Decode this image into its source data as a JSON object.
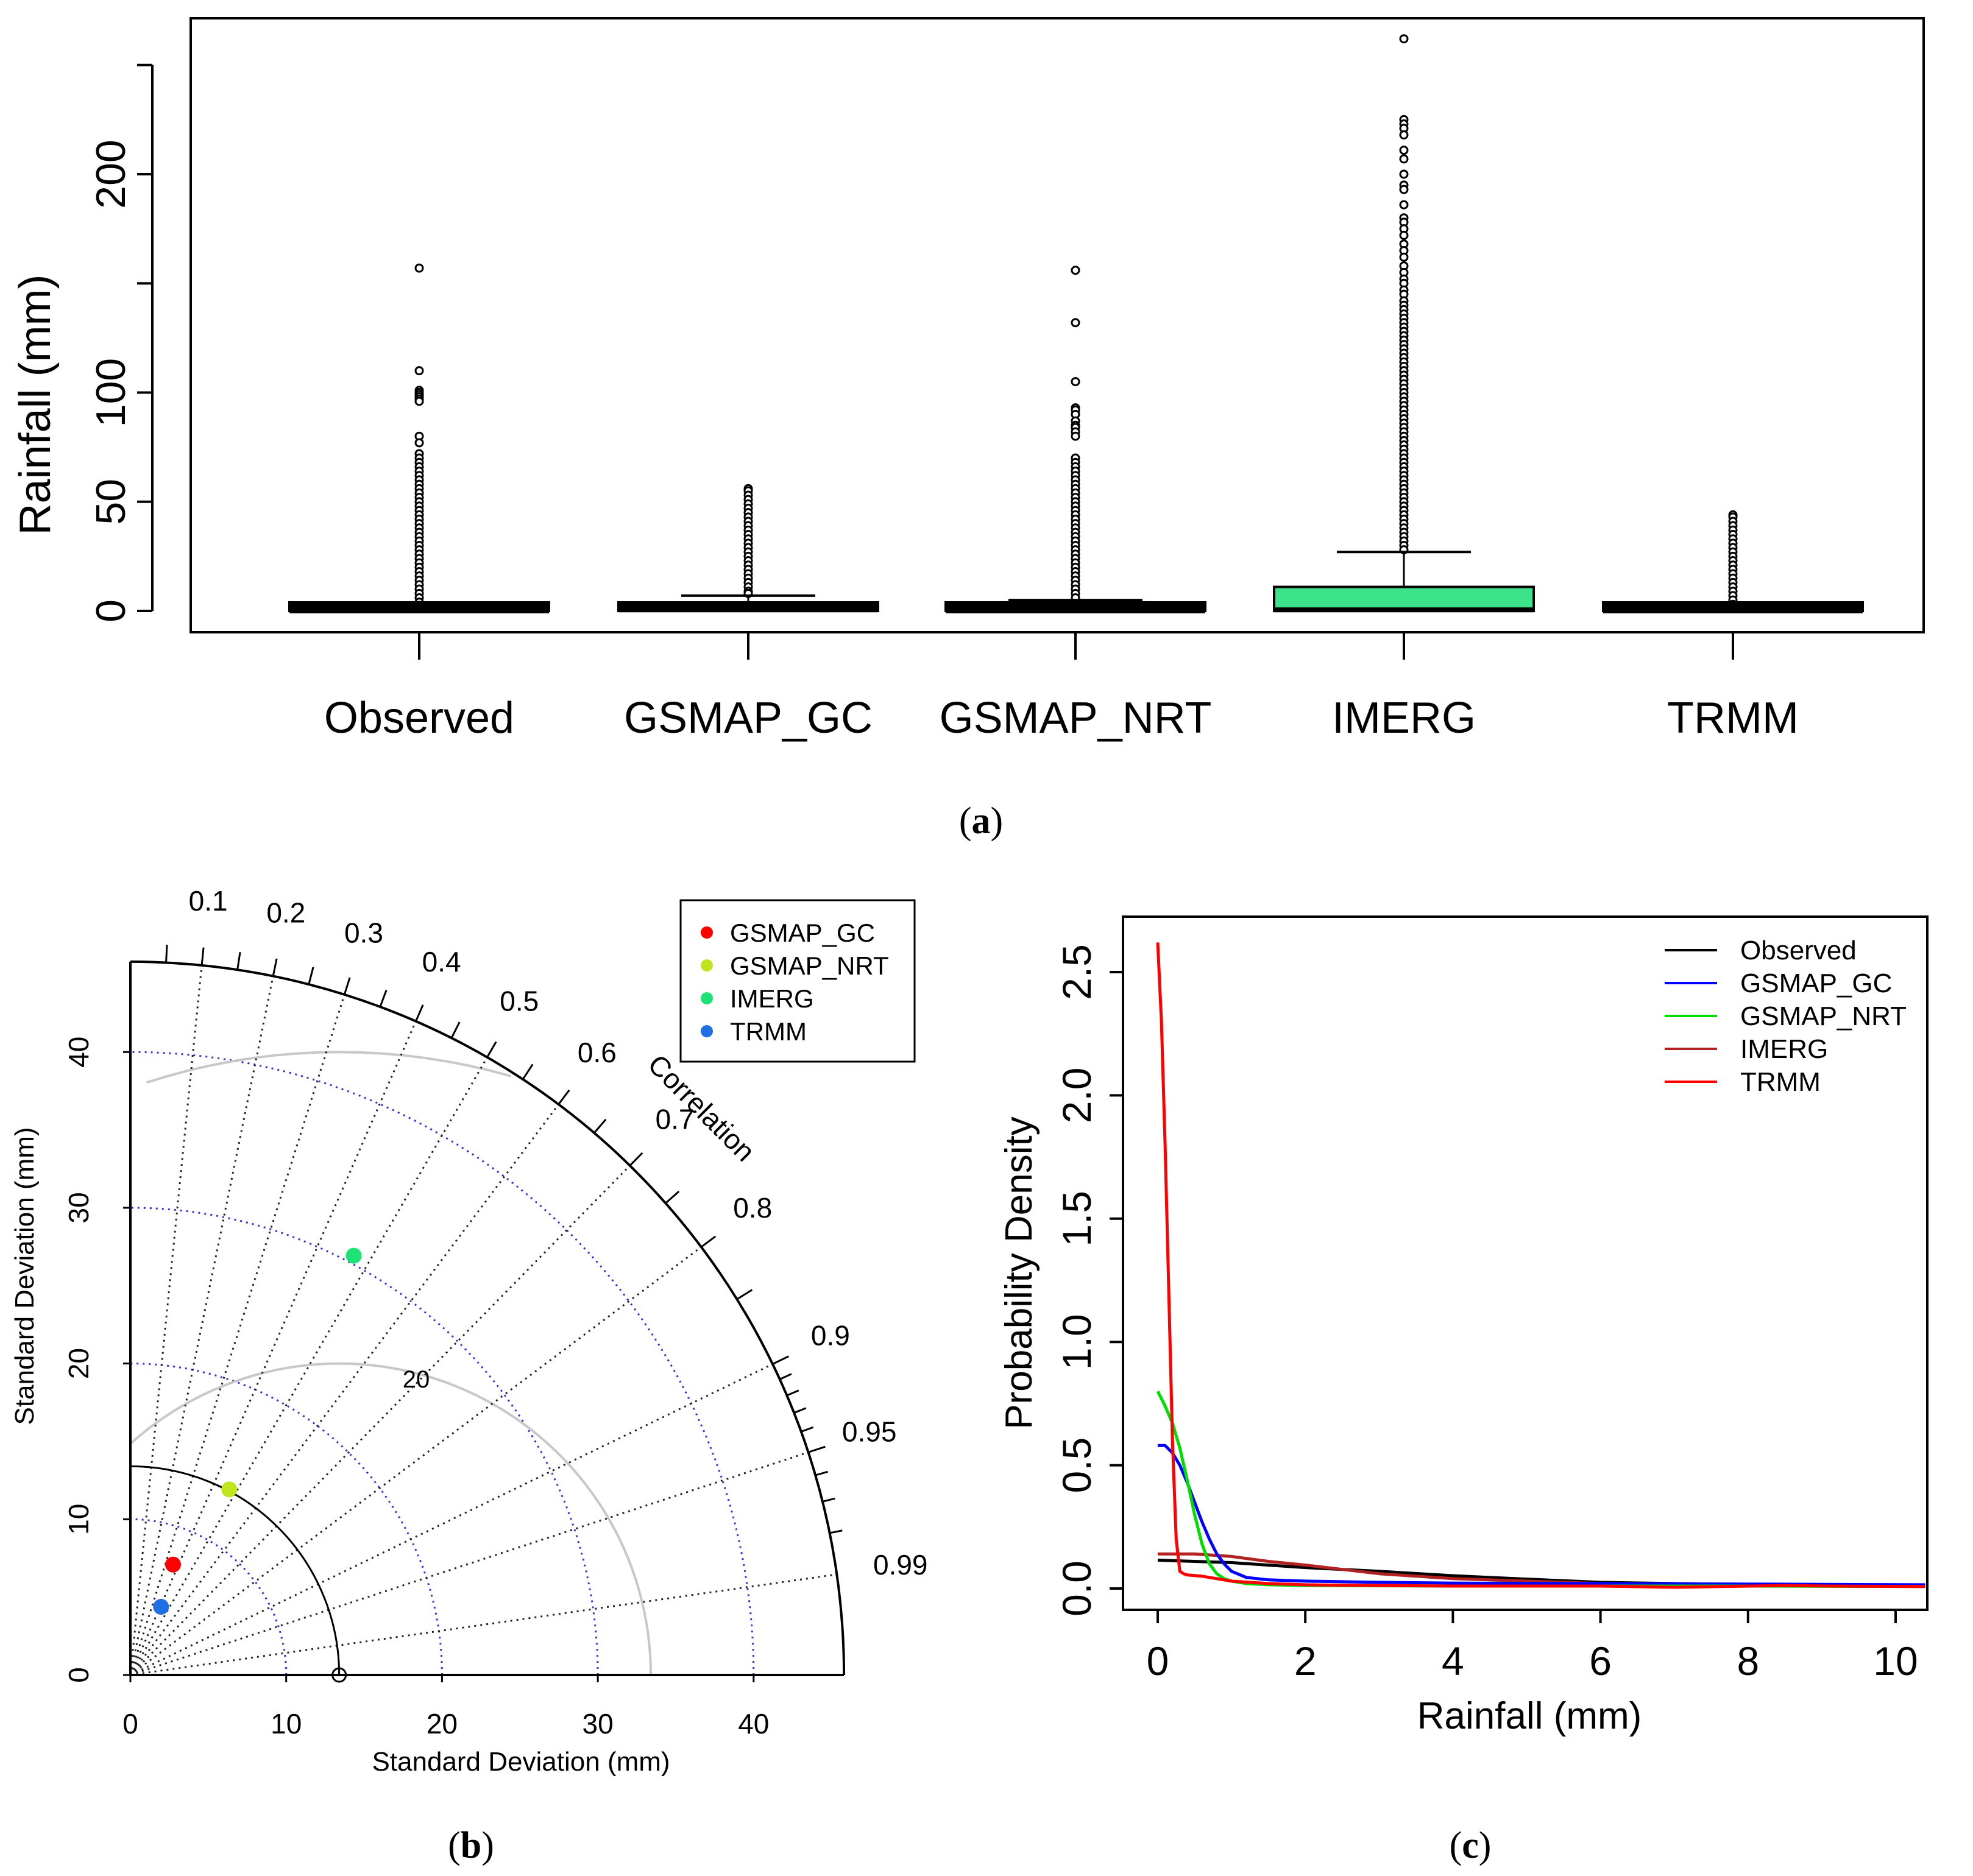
{
  "chart_data": [
    {
      "id": "a",
      "type": "box",
      "panel_label": "a",
      "ylabel": "Rainfall (mm)",
      "yticks": [
        0,
        50,
        100,
        200
      ],
      "ylim": [
        -5,
        272
      ],
      "categories": [
        "Observed",
        "GSMAP_GC",
        "GSMAP_NRT",
        "IMERG",
        "TRMM"
      ],
      "boxes": [
        {
          "name": "Observed",
          "q1": 0,
          "median": 0,
          "q3": 1,
          "whisker_low": 0,
          "whisker_high": 1,
          "fill": "#000000",
          "outliers": [
            157,
            110,
            101,
            100,
            99,
            98,
            97,
            96,
            80,
            77,
            72,
            70,
            68,
            66,
            64,
            62,
            60,
            58,
            56,
            54,
            52,
            50,
            48,
            46,
            44,
            42,
            40,
            38,
            36,
            34,
            32,
            30,
            28,
            26,
            24,
            22,
            20,
            18,
            16,
            14,
            12,
            10,
            8,
            6,
            4,
            2.5
          ]
        },
        {
          "name": "GSMAP_GC",
          "q1": 0,
          "median": 0.5,
          "q3": 2.5,
          "whisker_low": 0,
          "whisker_high": 7,
          "fill": "#000000",
          "outliers": [
            56,
            55,
            53,
            51,
            49,
            47,
            45,
            43,
            41,
            39,
            37,
            35,
            33,
            31,
            29,
            27,
            25,
            23,
            21,
            19,
            17,
            15,
            13,
            11,
            9,
            8
          ]
        },
        {
          "name": "GSMAP_NRT",
          "q1": 0,
          "median": 0,
          "q3": 1,
          "whisker_low": 0,
          "whisker_high": 5,
          "fill": "#000000",
          "outliers": [
            156,
            132,
            105,
            93,
            92,
            90,
            87,
            85,
            84,
            82,
            80,
            70,
            68,
            66,
            64,
            62,
            60,
            58,
            56,
            54,
            52,
            50,
            48,
            46,
            44,
            42,
            40,
            38,
            36,
            34,
            32,
            30,
            28,
            26,
            24,
            22,
            20,
            18,
            16,
            14,
            12,
            10,
            8,
            6
          ]
        },
        {
          "name": "IMERG",
          "q1": 0,
          "median": 0.5,
          "q3": 11,
          "whisker_low": 0,
          "whisker_high": 27,
          "fill": "#3de38a",
          "outliers": [
            262,
            225,
            223,
            221,
            218,
            211,
            207,
            200,
            195,
            193,
            186,
            180,
            178,
            175,
            172,
            168,
            165,
            162,
            158,
            155,
            152,
            150,
            147,
            145,
            142,
            140,
            138,
            136,
            134,
            132,
            130,
            128,
            126,
            124,
            122,
            120,
            118,
            116,
            114,
            112,
            110,
            108,
            106,
            104,
            102,
            100,
            98,
            96,
            94,
            92,
            90,
            88,
            86,
            84,
            82,
            80,
            78,
            76,
            74,
            72,
            70,
            68,
            66,
            64,
            62,
            60,
            58,
            56,
            54,
            52,
            50,
            48,
            46,
            44,
            42,
            40,
            38,
            36,
            34,
            32,
            30,
            28
          ]
        },
        {
          "name": "TRMM",
          "q1": 0,
          "median": 0,
          "q3": 1,
          "whisker_low": 0,
          "whisker_high": 1,
          "fill": "#000000",
          "outliers": [
            44,
            43,
            41,
            39,
            37,
            35,
            33,
            31,
            29,
            27,
            25,
            23,
            21,
            19,
            17,
            15,
            13,
            11,
            9,
            7,
            5,
            3,
            2
          ]
        }
      ]
    },
    {
      "id": "b",
      "type": "taylor",
      "panel_label": "b",
      "xlabel": "Standard Deviation (mm)",
      "ylabel": "Standard Deviation (mm)",
      "corr_title": "Correlation",
      "sd_ticks": [
        0,
        10,
        20,
        30,
        40
      ],
      "sd_max": 45.8,
      "sd_rings": [
        10,
        20,
        30,
        40
      ],
      "corr_labels": [
        "0.1",
        "0.2",
        "0.3",
        "0.4",
        "0.5",
        "0.6",
        "0.7",
        "0.8",
        "0.9",
        "0.95",
        "0.99"
      ],
      "corr_lines": [
        0.1,
        0.2,
        0.3,
        0.4,
        0.5,
        0.6,
        0.7,
        0.8,
        0.9,
        0.95,
        0.99
      ],
      "observed_sd": 13.4,
      "rms_rings": [
        20,
        40
      ],
      "rms_label": "20",
      "points": [
        {
          "name": "GSMAP_GC",
          "sd": 7.6,
          "corr": 0.36,
          "color": "#ff0000"
        },
        {
          "name": "GSMAP_NRT",
          "sd": 13.5,
          "corr": 0.47,
          "color": "#bfe51f"
        },
        {
          "name": "IMERG",
          "sd": 30.5,
          "corr": 0.47,
          "color": "#1fe276"
        },
        {
          "name": "TRMM",
          "sd": 4.8,
          "corr": 0.41,
          "color": "#1f6fe5"
        }
      ],
      "legend": [
        "GSMAP_GC",
        "GSMAP_NRT",
        "IMERG",
        "TRMM"
      ]
    },
    {
      "id": "c",
      "type": "line",
      "panel_label": "c",
      "xlabel": "Rainfall (mm)",
      "ylabel": "Probability Density",
      "xlim": [
        -0.45,
        10.4
      ],
      "ylim": [
        -0.1,
        2.7
      ],
      "xticks": [
        0,
        2,
        4,
        6,
        8,
        10
      ],
      "yticks": [
        "0.0",
        "0.5",
        "1.0",
        "1.5",
        "2.0",
        "2.5"
      ],
      "series": [
        {
          "name": "Observed",
          "color": "#000000",
          "x": [
            0,
            0.5,
            1,
            2,
            3,
            4,
            5,
            6,
            7,
            8,
            9,
            10.4
          ],
          "y": [
            0.115,
            0.11,
            0.105,
            0.085,
            0.07,
            0.052,
            0.038,
            0.025,
            0.02,
            0.016,
            0.013,
            0.012
          ]
        },
        {
          "name": "GSMAP_GC",
          "color": "#0000ff",
          "x": [
            0,
            0.1,
            0.2,
            0.3,
            0.4,
            0.5,
            0.6,
            0.7,
            0.8,
            0.9,
            1.0,
            1.2,
            1.5,
            2,
            3,
            4,
            6,
            8,
            10.4
          ],
          "y": [
            0.58,
            0.58,
            0.55,
            0.5,
            0.43,
            0.35,
            0.27,
            0.2,
            0.14,
            0.1,
            0.07,
            0.045,
            0.035,
            0.03,
            0.025,
            0.022,
            0.02,
            0.018,
            0.015
          ]
        },
        {
          "name": "GSMAP_NRT",
          "color": "#00dd00",
          "x": [
            0,
            0.1,
            0.2,
            0.3,
            0.4,
            0.5,
            0.6,
            0.7,
            0.8,
            0.9,
            1.0,
            1.2,
            1.5,
            2,
            4,
            6,
            8,
            10.4
          ],
          "y": [
            0.8,
            0.74,
            0.67,
            0.57,
            0.44,
            0.3,
            0.18,
            0.1,
            0.06,
            0.04,
            0.03,
            0.02,
            0.015,
            0.012,
            0.01,
            0.01,
            0.01,
            0.008
          ]
        },
        {
          "name": "IMERG",
          "color": "#b22222",
          "x": [
            0,
            0.5,
            1,
            1.5,
            2,
            3,
            4,
            5,
            6,
            8,
            10.4
          ],
          "y": [
            0.14,
            0.14,
            0.13,
            0.11,
            0.095,
            0.06,
            0.04,
            0.03,
            0.02,
            0.015,
            0.012
          ]
        },
        {
          "name": "TRMM",
          "color": "#ff0000",
          "x": [
            0,
            0.05,
            0.1,
            0.15,
            0.2,
            0.25,
            0.3,
            0.35,
            0.4,
            0.6,
            0.8,
            1.0,
            1.5,
            2,
            3,
            4,
            6,
            7,
            8.5,
            9.1,
            10.4
          ],
          "y": [
            2.62,
            2.3,
            1.8,
            1.2,
            0.6,
            0.2,
            0.07,
            0.06,
            0.055,
            0.05,
            0.04,
            0.03,
            0.02,
            0.015,
            0.012,
            0.01,
            0.01,
            0.005,
            0.012,
            0.01,
            0.008
          ]
        }
      ],
      "legend": [
        "Observed",
        "GSMAP_GC",
        "GSMAP_NRT",
        "IMERG",
        "TRMM"
      ]
    }
  ]
}
